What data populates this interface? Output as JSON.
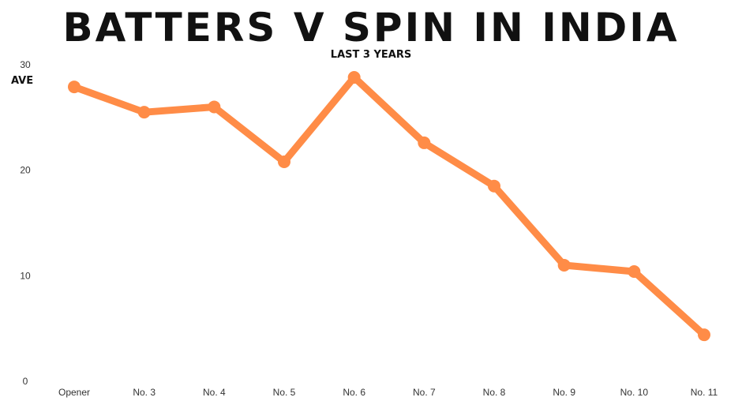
{
  "chart_data": {
    "type": "line",
    "title": "BATTERS V SPIN IN INDIA",
    "subtitle": "LAST 3 YEARS",
    "ylabel": "AVE",
    "xlabel": "",
    "categories": [
      "Opener",
      "No. 3",
      "No. 4",
      "No. 5",
      "No. 6",
      "No. 7",
      "No. 8",
      "No. 9",
      "No. 10",
      "No. 11"
    ],
    "series": [
      {
        "values": [
          27.9,
          25.5,
          26.0,
          20.8,
          28.8,
          22.6,
          18.5,
          11.0,
          10.4,
          4.4
        ]
      }
    ],
    "ylim": [
      0,
      30
    ],
    "yticks": [
      0,
      10,
      20,
      30
    ],
    "grid": false,
    "line_color": "#ff8c47"
  }
}
